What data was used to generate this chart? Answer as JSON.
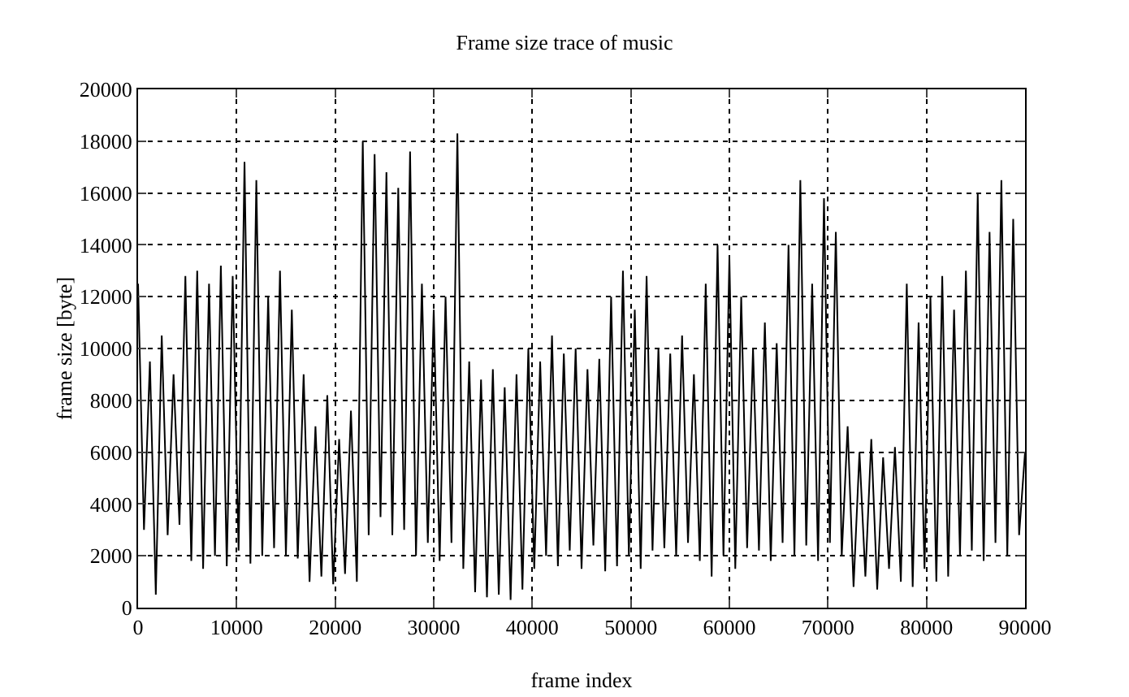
{
  "chart_data": {
    "type": "line",
    "title": "Frame size trace of music",
    "xlabel": "frame index",
    "ylabel": "frame size [byte]",
    "x": [
      0,
      600,
      1200,
      1800,
      2400,
      3000,
      3600,
      4200,
      4800,
      5400,
      6000,
      6600,
      7200,
      7800,
      8400,
      9000,
      9600,
      10200,
      10800,
      11400,
      12000,
      12600,
      13200,
      13800,
      14400,
      15000,
      15600,
      16200,
      16800,
      17400,
      18000,
      18600,
      19200,
      19800,
      20400,
      21000,
      21600,
      22200,
      22800,
      23400,
      24000,
      24600,
      25200,
      25800,
      26400,
      27000,
      27600,
      28200,
      28800,
      29400,
      30000,
      30600,
      31200,
      31800,
      32400,
      33000,
      33600,
      34200,
      34800,
      35400,
      36000,
      36600,
      37200,
      37800,
      38400,
      39000,
      39600,
      40200,
      40800,
      41400,
      42000,
      42600,
      43200,
      43800,
      44400,
      45000,
      45600,
      46200,
      46800,
      47400,
      48000,
      48600,
      49200,
      49800,
      50400,
      51000,
      51600,
      52200,
      52800,
      53400,
      54000,
      54600,
      55200,
      55800,
      56400,
      57000,
      57600,
      58200,
      58800,
      59400,
      60000,
      60600,
      61200,
      61800,
      62400,
      63000,
      63600,
      64200,
      64800,
      65400,
      66000,
      66600,
      67200,
      67800,
      68400,
      69000,
      69600,
      70200,
      70800,
      71400,
      72000,
      72600,
      73200,
      73800,
      74400,
      75000,
      75600,
      76200,
      76800,
      77400,
      78000,
      78600,
      79200,
      79800,
      80400,
      81000,
      81600,
      82200,
      82800,
      83400,
      84000,
      84600,
      85200,
      85800,
      86400,
      87000,
      87600,
      88200,
      88800,
      89400,
      90000
    ],
    "series": [
      {
        "color": "#000000",
        "values": [
          12500,
          3000,
          9500,
          500,
          10500,
          2800,
          9000,
          3200,
          12800,
          1800,
          13000,
          1500,
          12500,
          2000,
          13200,
          1600,
          12800,
          2200,
          17200,
          1700,
          16500,
          2000,
          12000,
          2300,
          13000,
          2000,
          11500,
          1900,
          9000,
          1000,
          7000,
          1200,
          8200,
          900,
          6500,
          1300,
          7600,
          1000,
          18000,
          2800,
          17500,
          3500,
          16800,
          2800,
          16200,
          3000,
          17600,
          2000,
          12500,
          2500,
          11500,
          1800,
          12000,
          2500,
          18300,
          1500,
          9500,
          600,
          8800,
          400,
          9200,
          500,
          8500,
          300,
          9000,
          700,
          10000,
          1500,
          9500,
          2000,
          10500,
          1600,
          9800,
          2200,
          10000,
          1500,
          9200,
          2400,
          9600,
          1400,
          12000,
          1600,
          13000,
          2000,
          11500,
          1500,
          12800,
          2200,
          10000,
          2300,
          9800,
          2000,
          10500,
          2500,
          9000,
          1800,
          12500,
          1200,
          14000,
          2000,
          13500,
          1500,
          12000,
          2300,
          10000,
          2200,
          11000,
          1800,
          10200,
          2500,
          14000,
          2000,
          16500,
          2400,
          12500,
          1800,
          15800,
          2500,
          14500,
          2000,
          7000,
          800,
          6000,
          1200,
          6500,
          700,
          5800,
          1500,
          6200,
          1000,
          12500,
          800,
          11000,
          1500,
          12000,
          1000,
          12800,
          1200,
          11500,
          2000,
          13000,
          2200,
          16000,
          1800,
          14500,
          2500,
          16500,
          2000,
          15000,
          2800,
          6000
        ]
      }
    ],
    "xlim": [
      0,
      90000
    ],
    "xticks": [
      0,
      10000,
      20000,
      30000,
      40000,
      50000,
      60000,
      70000,
      80000,
      90000
    ],
    "ylim": [
      0,
      20000
    ],
    "yticks": [
      0,
      2000,
      4000,
      6000,
      8000,
      10000,
      12000,
      14000,
      16000,
      18000,
      20000
    ],
    "grid": true,
    "line_style": "solid"
  }
}
